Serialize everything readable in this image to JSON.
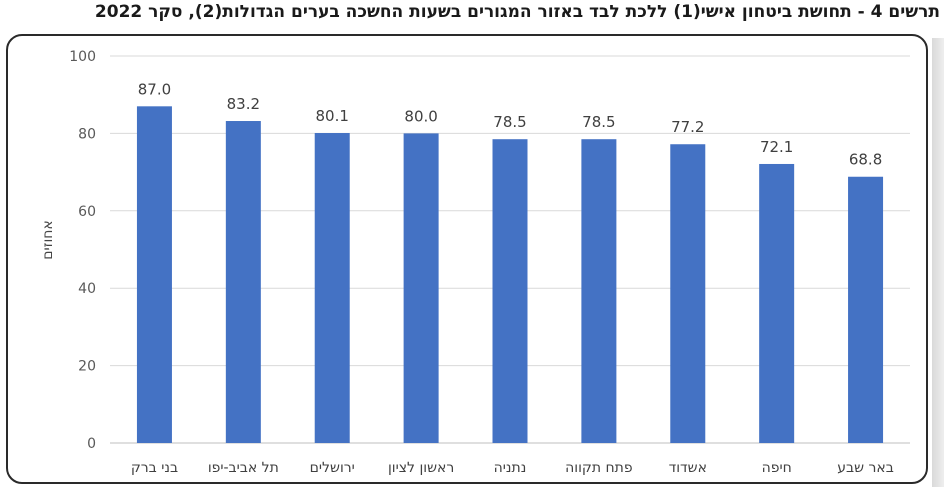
{
  "chart_data": {
    "type": "bar",
    "title": "תרשים 4 - תחושת ביטחון אישי(1) ללכת לבד באזור המגורים בשעות החשכה בערים הגדולות(2), סקר 2022",
    "xlabel": "",
    "ylabel": "אחוזים",
    "ylim": [
      0,
      100
    ],
    "yticks": [
      0,
      20,
      40,
      60,
      80,
      100
    ],
    "grid": true,
    "categories": [
      "בני ברק",
      "תל אביב-יפו",
      "ירושלים",
      "ראשון לציון",
      "נתניה",
      "פתח תקווה",
      "אשדוד",
      "חיפה",
      "באר שבע"
    ],
    "values": [
      87.0,
      83.2,
      80.1,
      80.0,
      78.5,
      78.5,
      77.2,
      72.1,
      68.8
    ],
    "value_labels": [
      "87.0",
      "83.2",
      "80.1",
      "80.0",
      "78.5",
      "78.5",
      "77.2",
      "72.1",
      "68.8"
    ],
    "bar_color": "#4472c4"
  }
}
